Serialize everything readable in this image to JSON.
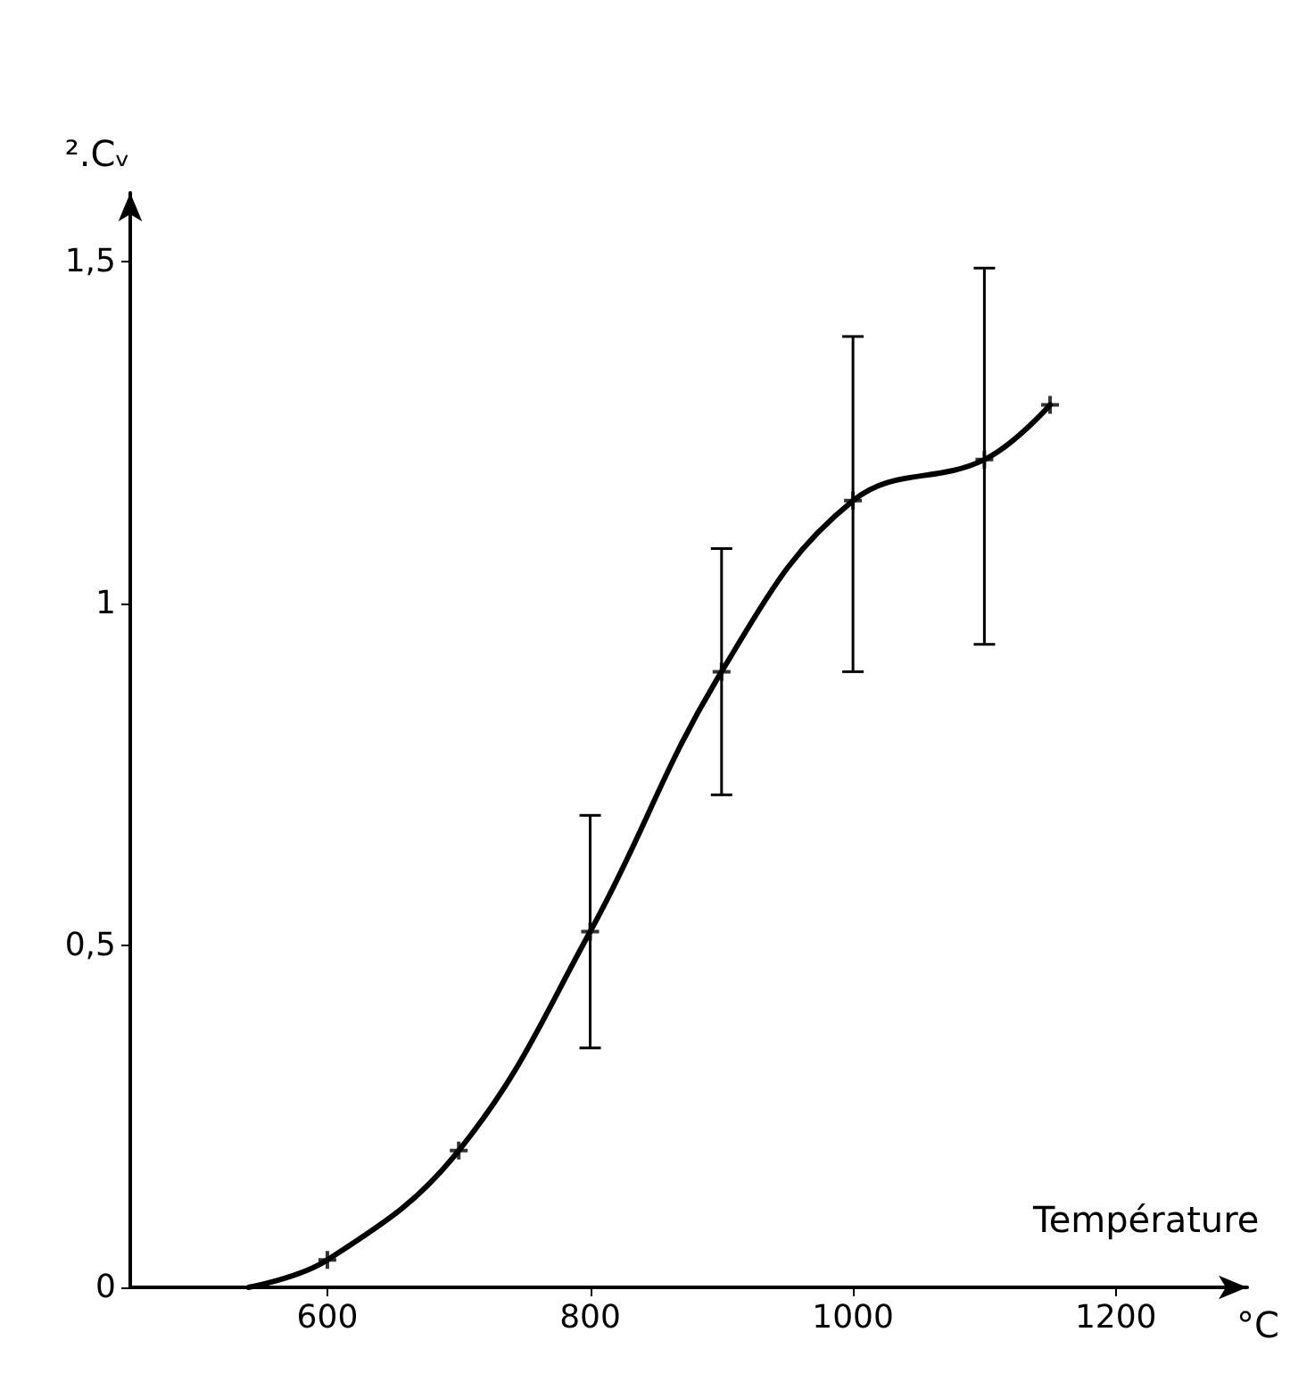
{
  "chart_data": {
    "type": "line",
    "xlabel": "Température",
    "ylabel": "².Cᵥ",
    "annotations": [
      "°C"
    ],
    "xlim": [
      450,
      1300
    ],
    "xticks": [
      600,
      800,
      1000,
      1200
    ],
    "ylim": [
      0,
      1.6
    ],
    "yticks": [
      0,
      {
        "value": 0.5,
        "label": "0,5"
      },
      1,
      {
        "value": 1.5,
        "label": "1,5"
      }
    ],
    "grid": false,
    "series": [
      {
        "color": "#000000",
        "marker": "none",
        "line_style": "solid",
        "x": [
          540,
          600,
          700,
          800,
          900,
          1000,
          1100,
          1150
        ],
        "values": [
          0,
          0.04,
          0.2,
          0.52,
          0.9,
          1.15,
          1.21,
          1.29
        ]
      },
      {
        "type": "scatter",
        "color": "#000000",
        "marker": "cross",
        "x": [
          600,
          700,
          800,
          900,
          1000,
          1100,
          1150
        ],
        "values": [
          0.04,
          0.2,
          0.52,
          0.9,
          1.15,
          1.21,
          1.29
        ],
        "errors": [
          null,
          null,
          [
            0.35,
            0.69
          ],
          [
            0.72,
            1.08
          ],
          [
            0.9,
            1.39
          ],
          [
            0.94,
            1.49
          ],
          null
        ]
      }
    ]
  }
}
